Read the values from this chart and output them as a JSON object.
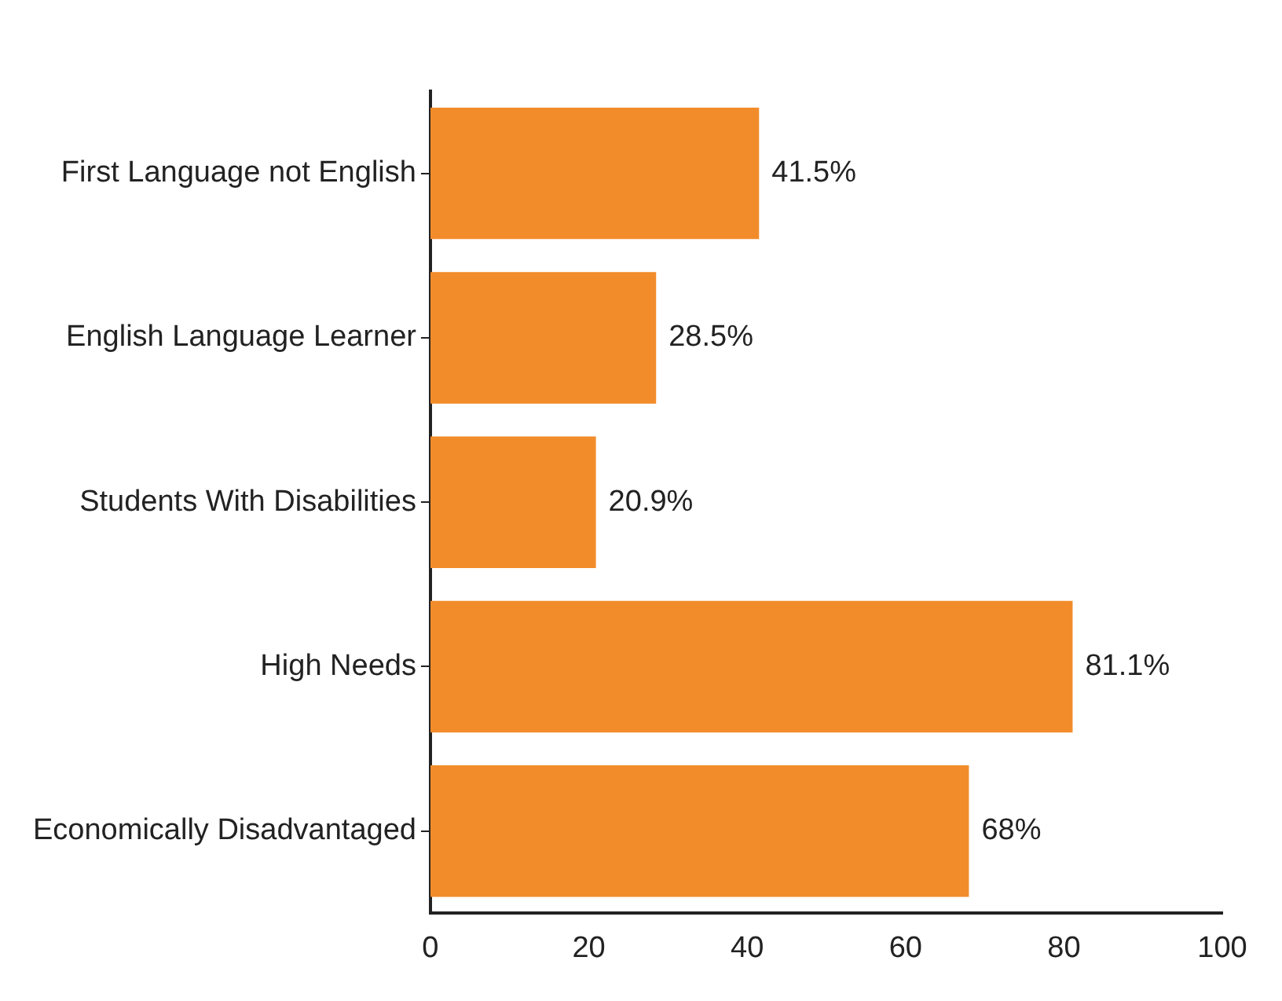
{
  "chart_data": {
    "type": "bar",
    "orientation": "horizontal",
    "categories": [
      "First Language not English",
      "English Language Learner",
      "Students With Disabilities",
      "High Needs",
      "Economically Disadvantaged"
    ],
    "values": [
      41.5,
      28.5,
      20.9,
      81.1,
      68
    ],
    "value_labels": [
      "41.5%",
      "28.5%",
      "20.9%",
      "81.1%",
      "68%"
    ],
    "color": "#f28c2a",
    "xlim": [
      0,
      100
    ],
    "xticks": [
      0,
      20,
      40,
      60,
      80,
      100
    ],
    "grid": false,
    "legend": false
  }
}
